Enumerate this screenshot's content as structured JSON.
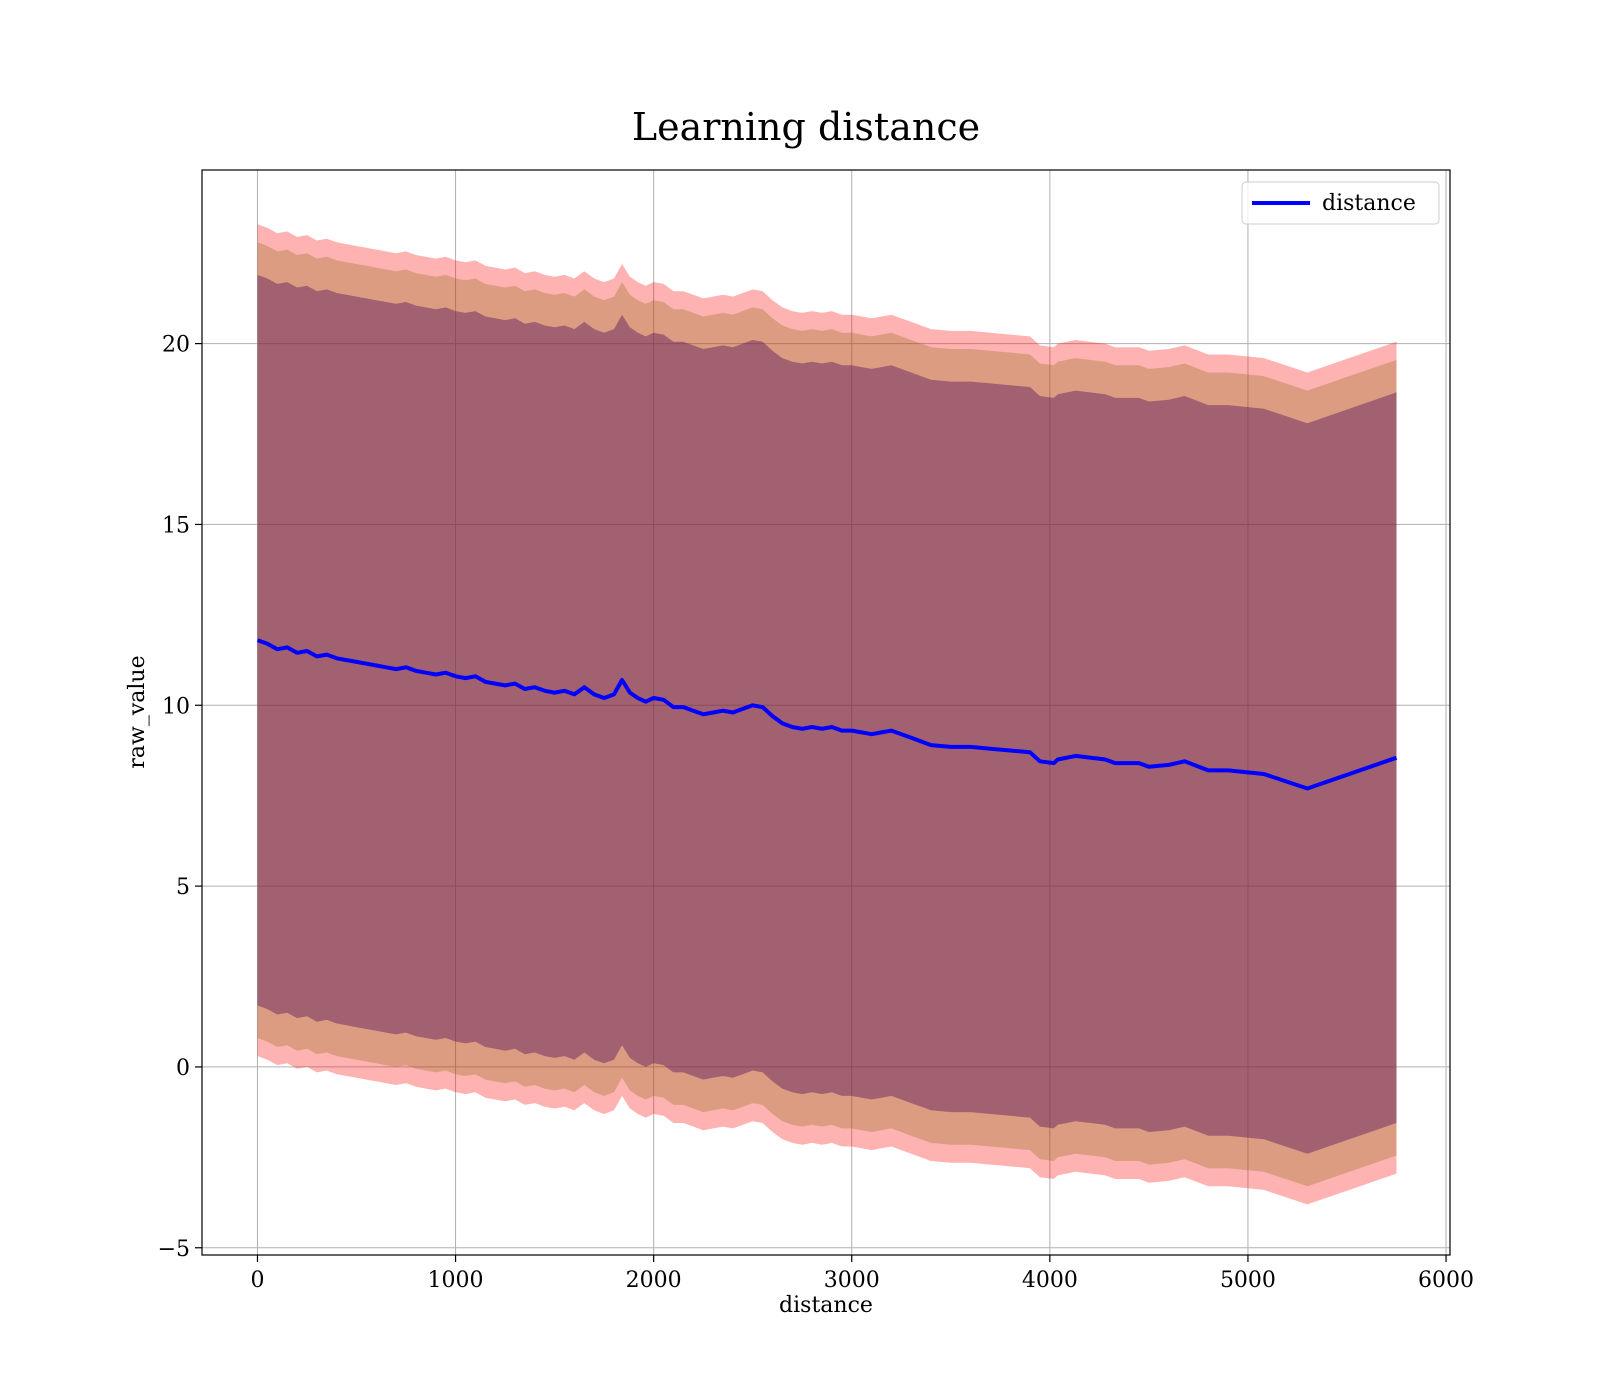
{
  "chart_data": {
    "type": "line",
    "title": "Learning distance",
    "xlabel": "distance",
    "ylabel": "raw_value",
    "xlim": [
      -280,
      6020
    ],
    "ylim": [
      -5.2,
      24.8
    ],
    "xticks": [
      0,
      1000,
      2000,
      3000,
      4000,
      5000,
      6000
    ],
    "yticks": [
      -5,
      0,
      5,
      10,
      15,
      20
    ],
    "xtick_labels": [
      "0",
      "1000",
      "2000",
      "3000",
      "4000",
      "5000",
      "6000"
    ],
    "ytick_labels": [
      "−5",
      "0",
      "5",
      "10",
      "15",
      "20"
    ],
    "grid": true,
    "legend": {
      "position": "top-right",
      "entries": [
        "distance"
      ]
    },
    "colors": {
      "line": "#0000ff",
      "band_outer": "#ff0000",
      "band_middle": "#8b6914",
      "band_inner": "#5a1a5a",
      "grid": "#b0b0b0"
    },
    "series": [
      {
        "name": "distance",
        "x": [
          0,
          50,
          100,
          150,
          200,
          250,
          300,
          350,
          400,
          450,
          500,
          550,
          600,
          650,
          700,
          750,
          800,
          850,
          900,
          950,
          1000,
          1050,
          1100,
          1150,
          1200,
          1250,
          1300,
          1350,
          1400,
          1450,
          1500,
          1550,
          1600,
          1650,
          1700,
          1750,
          1800,
          1840,
          1880,
          1920,
          1960,
          2000,
          2050,
          2100,
          2150,
          2200,
          2250,
          2300,
          2350,
          2400,
          2450,
          2500,
          2550,
          2600,
          2650,
          2700,
          2750,
          2800,
          2850,
          2900,
          2950,
          3000,
          3050,
          3100,
          3150,
          3200,
          3300,
          3400,
          3500,
          3600,
          3700,
          3800,
          3900,
          3950,
          4020,
          4040,
          4130,
          4280,
          4330,
          4450,
          4500,
          4600,
          4680,
          4800,
          4900,
          5080,
          5300,
          5750
        ],
        "y": [
          11.8,
          11.7,
          11.55,
          11.6,
          11.45,
          11.5,
          11.35,
          11.4,
          11.3,
          11.25,
          11.2,
          11.15,
          11.1,
          11.05,
          11.0,
          11.05,
          10.95,
          10.9,
          10.85,
          10.9,
          10.8,
          10.75,
          10.8,
          10.65,
          10.6,
          10.55,
          10.6,
          10.45,
          10.5,
          10.4,
          10.35,
          10.4,
          10.3,
          10.5,
          10.3,
          10.2,
          10.3,
          10.7,
          10.35,
          10.2,
          10.1,
          10.2,
          10.15,
          9.95,
          9.95,
          9.85,
          9.75,
          9.8,
          9.85,
          9.8,
          9.9,
          10.0,
          9.95,
          9.7,
          9.5,
          9.4,
          9.35,
          9.4,
          9.35,
          9.4,
          9.3,
          9.3,
          9.25,
          9.2,
          9.25,
          9.3,
          9.1,
          8.9,
          8.85,
          8.85,
          8.8,
          8.75,
          8.7,
          8.45,
          8.4,
          8.5,
          8.6,
          8.5,
          8.4,
          8.4,
          8.3,
          8.35,
          8.45,
          8.2,
          8.2,
          8.1,
          7.7,
          8.55
        ]
      }
    ],
    "bands": [
      {
        "label": "outer",
        "half_width": 11.5
      },
      {
        "label": "middle",
        "half_width": 11.0
      },
      {
        "label": "inner",
        "half_width": 10.1
      }
    ]
  }
}
